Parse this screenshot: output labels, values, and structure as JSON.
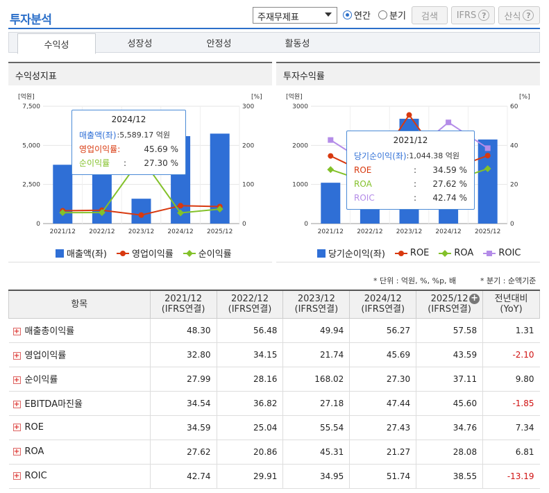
{
  "header": {
    "title": "투자분석",
    "select": "주재무제표",
    "radio1": "연간",
    "radio2": "분기",
    "search": "검색",
    "ifrs": "IFRS",
    "formula": "산식"
  },
  "tabs": [
    "수익성",
    "성장성",
    "안정성",
    "활동성"
  ],
  "left": {
    "title": "수익성지표",
    "left_unit": "[억원]",
    "right_unit": "[%]",
    "yticks": [
      "7,500",
      "5,000",
      "2,500",
      "0"
    ],
    "rticks": [
      "300",
      "200",
      "100",
      "0"
    ],
    "legend": [
      "매출액(좌)",
      "영업이익률",
      "순이익률"
    ],
    "tooltip": {
      "date": "2024/12",
      "r1_label": "매출액(좌)",
      "r1_value": ":5,589.17 억원",
      "r2_label": "영업이익률:",
      "r2_value": "45.69 %",
      "r3_label": "순이익률",
      "r3_sep": ":",
      "r3_value": "27.30 %"
    }
  },
  "right": {
    "title": "투자수익률",
    "left_unit": "[억원]",
    "right_unit": "[%]",
    "yticks": [
      "3000",
      "2000",
      "1000",
      "0"
    ],
    "rticks": [
      "60",
      "40",
      "20",
      "0"
    ],
    "legend": [
      "당기순이익(좌)",
      "ROE",
      "ROA",
      "ROIC"
    ],
    "tooltip": {
      "date": "2021/12",
      "r1_label": "당기순이익(좌)",
      "r1_value": ":1,044.38 억원",
      "r2_label": "ROE",
      "r2_value": "34.59 %",
      "r3_label": "ROA",
      "r3_value": "27.62 %",
      "r4_label": "ROIC",
      "r4_value": "42.74 %",
      "sep": ":"
    }
  },
  "colors": {
    "bar": "#2f6fd6",
    "op": "#d8390f",
    "net": "#83c12a",
    "roic": "#b48ce8"
  },
  "chart_data": [
    {
      "type": "bar",
      "title": "수익성지표",
      "categories": [
        "2021/12",
        "2022/12",
        "2023/12",
        "2024/12",
        "2025/12"
      ],
      "series": [
        {
          "name": "매출액(좌)",
          "values": [
            3760,
            4060,
            1590,
            5589.17,
            5750
          ]
        },
        {
          "name": "영업이익률",
          "values": [
            32.8,
            34.15,
            21.74,
            45.69,
            43.59
          ]
        },
        {
          "name": "순이익률",
          "values": [
            27.99,
            28.16,
            168.02,
            27.3,
            37.11
          ]
        }
      ],
      "ylim": [
        0,
        7500
      ],
      "y2lim": [
        0,
        300
      ]
    },
    {
      "type": "bar",
      "title": "투자수익률",
      "categories": [
        "2021/12",
        "2022/12",
        "2023/12",
        "2024/12",
        "2025/12"
      ],
      "series": [
        {
          "name": "당기순이익(좌)",
          "values": [
            1044.38,
            1130,
            2680,
            1170,
            2150
          ]
        },
        {
          "name": "ROE",
          "values": [
            34.59,
            25.04,
            55.54,
            27.43,
            34.76
          ]
        },
        {
          "name": "ROA",
          "values": [
            27.62,
            20.86,
            45.31,
            21.27,
            28.08
          ]
        },
        {
          "name": "ROIC",
          "values": [
            42.74,
            29.91,
            34.95,
            51.74,
            38.55
          ]
        }
      ],
      "ylim": [
        0,
        3000
      ],
      "y2lim": [
        0,
        60
      ]
    }
  ],
  "note_left": "* 단위 : 억원, %, %p, 배",
  "note_right": "* 분기 : 순액기준",
  "table": {
    "headers": [
      [
        "항목",
        ""
      ],
      [
        "2021/12",
        "(IFRS연결)"
      ],
      [
        "2022/12",
        "(IFRS연결)"
      ],
      [
        "2023/12",
        "(IFRS연결)"
      ],
      [
        "2024/12",
        "(IFRS연결)"
      ],
      [
        "2025/12",
        "(IFRS연결)"
      ],
      [
        "전년대비",
        "(YoY)"
      ]
    ],
    "rows": [
      {
        "name": "매출총이익률",
        "v": [
          "48.30",
          "56.48",
          "49.94",
          "56.27",
          "57.58",
          "1.31"
        ]
      },
      {
        "name": "영업이익률",
        "v": [
          "32.80",
          "34.15",
          "21.74",
          "45.69",
          "43.59",
          "-2.10"
        ]
      },
      {
        "name": "순이익률",
        "v": [
          "27.99",
          "28.16",
          "168.02",
          "27.30",
          "37.11",
          "9.80"
        ]
      },
      {
        "name": "EBITDA마진율",
        "v": [
          "34.54",
          "36.82",
          "27.18",
          "47.44",
          "45.60",
          "-1.85"
        ]
      },
      {
        "name": "ROE",
        "v": [
          "34.59",
          "25.04",
          "55.54",
          "27.43",
          "34.76",
          "7.34"
        ]
      },
      {
        "name": "ROA",
        "v": [
          "27.62",
          "20.86",
          "45.31",
          "21.27",
          "28.08",
          "6.81"
        ]
      },
      {
        "name": "ROIC",
        "v": [
          "42.74",
          "29.91",
          "34.95",
          "51.74",
          "38.55",
          "-13.19"
        ]
      }
    ]
  }
}
